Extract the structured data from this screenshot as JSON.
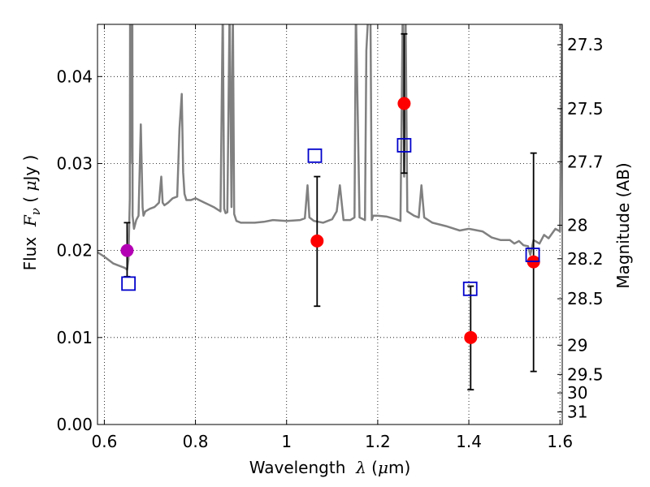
{
  "chart_data": {
    "type": "scatter",
    "xlabel": {
      "prefix": "Wavelength",
      "symbol": "λ",
      "unit_open": " (",
      "unit_mu": "μ",
      "unit_rest": "m)"
    },
    "ylabel": {
      "prefix": "Flux",
      "symbol": "F",
      "subscript": "ν",
      "unit_open": " ( ",
      "unit_mu": "μ",
      "unit_rest": "Jy )"
    },
    "y2label": "Magnitude (AB)",
    "xlim": [
      0.585,
      1.605
    ],
    "ylim": [
      0.0,
      0.046
    ],
    "grid": true,
    "x_ticks": [
      0.6,
      0.8,
      1.0,
      1.2,
      1.4,
      1.6
    ],
    "x_tick_labels": [
      "0.6",
      "0.8",
      "1",
      "1.2",
      "1.4",
      "1.6"
    ],
    "y_ticks": [
      0.0,
      0.01,
      0.02,
      0.03,
      0.04
    ],
    "y_tick_labels": [
      "0.00",
      "0.01",
      "0.02",
      "0.03",
      "0.04"
    ],
    "y2_ticks": [
      {
        "label": "27.3",
        "value": 27.3
      },
      {
        "label": "27.5",
        "value": 27.5
      },
      {
        "label": "27.7",
        "value": 27.7
      },
      {
        "label": "28",
        "value": 28.0
      },
      {
        "label": "28.2",
        "value": 28.2
      },
      {
        "label": "28.5",
        "value": 28.5
      },
      {
        "label": "29",
        "value": 29.0
      },
      {
        "label": "29.5",
        "value": 29.5
      },
      {
        "label": "30",
        "value": 30.0
      },
      {
        "label": "31",
        "value": 31.0
      }
    ],
    "spectrum": {
      "color": "#808080",
      "x": [
        0.585,
        0.6,
        0.62,
        0.635,
        0.645,
        0.65,
        0.653,
        0.656,
        0.6565,
        0.657,
        0.66,
        0.6615,
        0.662,
        0.665,
        0.67,
        0.675,
        0.68,
        0.684,
        0.686,
        0.69,
        0.7,
        0.71,
        0.72,
        0.725,
        0.728,
        0.732,
        0.74,
        0.75,
        0.76,
        0.765,
        0.77,
        0.773,
        0.776,
        0.78,
        0.79,
        0.8,
        0.82,
        0.84,
        0.855,
        0.86,
        0.863,
        0.866,
        0.87,
        0.875,
        0.879,
        0.882,
        0.885,
        0.89,
        0.9,
        0.93,
        0.95,
        0.97,
        1.0,
        1.03,
        1.04,
        1.046,
        1.05,
        1.06,
        1.08,
        1.1,
        1.11,
        1.117,
        1.125,
        1.14,
        1.149,
        1.152,
        1.16,
        1.172,
        1.175,
        1.18,
        1.184,
        1.187,
        1.19,
        1.2,
        1.22,
        1.24,
        1.25,
        1.255,
        1.258,
        1.261,
        1.265,
        1.28,
        1.29,
        1.296,
        1.302,
        1.32,
        1.35,
        1.38,
        1.4,
        1.43,
        1.45,
        1.47,
        1.49,
        1.5,
        1.51,
        1.52,
        1.53,
        1.535,
        1.542,
        1.555,
        1.565,
        1.575,
        1.59,
        1.6,
        1.605
      ],
      "y": [
        0.0198,
        0.0193,
        0.0185,
        0.0182,
        0.018,
        0.0178,
        0.019,
        0.026,
        0.048,
        0.03,
        0.048,
        0.046,
        0.024,
        0.0225,
        0.0235,
        0.024,
        0.0345,
        0.025,
        0.024,
        0.0245,
        0.0248,
        0.025,
        0.0255,
        0.0285,
        0.0255,
        0.0252,
        0.0255,
        0.026,
        0.0262,
        0.034,
        0.038,
        0.029,
        0.0265,
        0.0258,
        0.0258,
        0.026,
        0.0255,
        0.025,
        0.0245,
        0.048,
        0.0248,
        0.0243,
        0.0244,
        0.048,
        0.025,
        0.048,
        0.0242,
        0.0234,
        0.0232,
        0.0232,
        0.0233,
        0.0235,
        0.0234,
        0.0235,
        0.0237,
        0.0275,
        0.0238,
        0.0234,
        0.0232,
        0.0236,
        0.0245,
        0.0275,
        0.0235,
        0.0235,
        0.0238,
        0.048,
        0.0238,
        0.0235,
        0.043,
        0.048,
        0.048,
        0.0235,
        0.024,
        0.024,
        0.0239,
        0.0236,
        0.0234,
        0.048,
        0.0285,
        0.048,
        0.0245,
        0.024,
        0.0238,
        0.0275,
        0.0238,
        0.0232,
        0.0228,
        0.0223,
        0.0225,
        0.0222,
        0.0215,
        0.0212,
        0.0212,
        0.0208,
        0.0211,
        0.0206,
        0.0205,
        0.0195,
        0.0212,
        0.0208,
        0.0218,
        0.0214,
        0.0225,
        0.0222,
        0.048
      ]
    },
    "measurements": [
      {
        "x": 0.65,
        "y": 0.02,
        "yerr_low": 0.017,
        "yerr_high": 0.0232,
        "color": "#b400b4"
      },
      {
        "x": 1.067,
        "y": 0.0211,
        "yerr_low": 0.0136,
        "yerr_high": 0.0285,
        "color": "#ff0000"
      },
      {
        "x": 1.258,
        "y": 0.0369,
        "yerr_low": 0.0289,
        "yerr_high": 0.0449,
        "color": "#ff0000"
      },
      {
        "x": 1.404,
        "y": 0.01,
        "yerr_low": 0.004,
        "yerr_high": 0.0159,
        "color": "#ff0000"
      },
      {
        "x": 1.542,
        "y": 0.0187,
        "yerr_low": 0.0061,
        "yerr_high": 0.0312,
        "color": "#ff0000"
      }
    ],
    "model_points": {
      "color": "#0000cc",
      "x": [
        0.653,
        1.062,
        1.258,
        1.403,
        1.54
      ],
      "y": [
        0.0162,
        0.0309,
        0.0321,
        0.0156,
        0.0195
      ]
    }
  }
}
